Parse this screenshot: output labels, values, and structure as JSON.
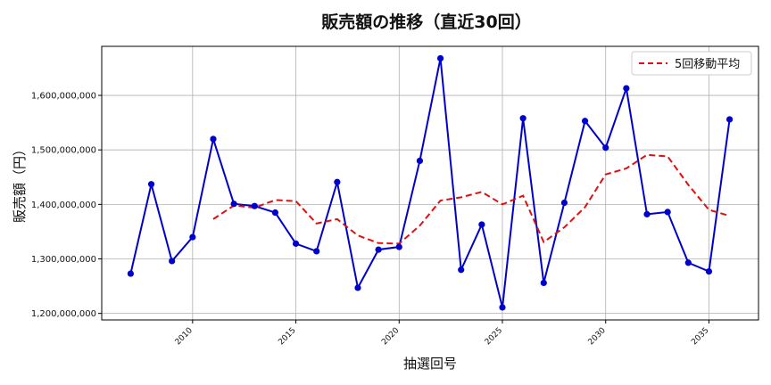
{
  "chart_data": {
    "type": "line",
    "title": "販売額の推移（直近30回）",
    "xlabel": "抽選回号",
    "ylabel": "販売額（円）",
    "xlim": [
      2005.6,
      2037.4
    ],
    "ylim": [
      1188000000,
      1690000000
    ],
    "xticks": [
      2010,
      2015,
      2020,
      2025,
      2030,
      2035
    ],
    "yticks": [
      1200000000,
      1300000000,
      1400000000,
      1500000000,
      1600000000
    ],
    "ytick_labels": [
      "1,200,000,000",
      "1,300,000,000",
      "1,400,000,000",
      "1,500,000,000",
      "1,600,000,000"
    ],
    "grid": true,
    "legend_position": "top-right",
    "x": [
      2007,
      2008,
      2009,
      2010,
      2011,
      2012,
      2013,
      2014,
      2015,
      2016,
      2017,
      2018,
      2019,
      2020,
      2021,
      2022,
      2023,
      2024,
      2025,
      2026,
      2027,
      2028,
      2029,
      2030,
      2031,
      2032,
      2033,
      2034,
      2035,
      2036
    ],
    "series": [
      {
        "color": "#0000cc",
        "style": "solid-markers",
        "values": [
          1273000000,
          1437000000,
          1296000000,
          1340000000,
          1520000000,
          1401000000,
          1397000000,
          1385000000,
          1328000000,
          1314000000,
          1441000000,
          1247000000,
          1317000000,
          1322000000,
          1480000000,
          1668000000,
          1280000000,
          1363000000,
          1211000000,
          1558000000,
          1256000000,
          1403000000,
          1553000000,
          1504000000,
          1613000000,
          1382000000,
          1386000000,
          1293000000,
          1277000000,
          1556000000
        ]
      },
      {
        "name": "5回移動平均",
        "color": "#dd1111",
        "style": "dashed",
        "x": [
          2011,
          2012,
          2013,
          2014,
          2015,
          2016,
          2017,
          2018,
          2019,
          2020,
          2021,
          2022,
          2023,
          2024,
          2025,
          2026,
          2027,
          2028,
          2029,
          2030,
          2031,
          2032,
          2033,
          2034,
          2035,
          2036
        ],
        "values": [
          1373000000,
          1398000000,
          1394000000,
          1408000000,
          1406000000,
          1365000000,
          1373000000,
          1343000000,
          1329000000,
          1328000000,
          1361000000,
          1407000000,
          1413000000,
          1423000000,
          1400000000,
          1416000000,
          1331000000,
          1358000000,
          1395000000,
          1455000000,
          1466000000,
          1491000000,
          1488000000,
          1436000000,
          1390000000,
          1379000000
        ]
      }
    ]
  }
}
